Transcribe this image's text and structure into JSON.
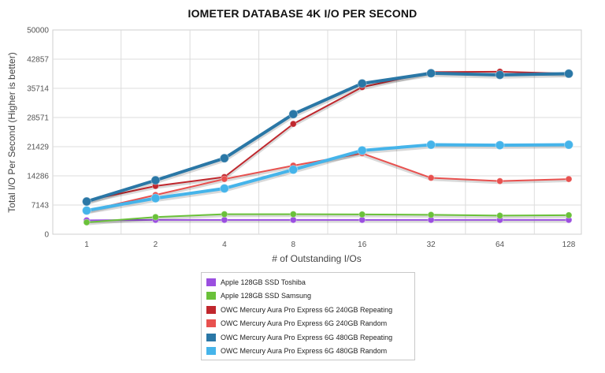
{
  "chart_data": {
    "type": "line",
    "title": "IOMETER DATABASE 4K I/O PER SECOND",
    "xlabel": "# of Outstanding I/Os",
    "ylabel": "Total I/O Per Second (Higher is better)",
    "categories": [
      "1",
      "2",
      "4",
      "8",
      "16",
      "32",
      "64",
      "128"
    ],
    "yticks": [
      "0",
      "7143",
      "14286",
      "21429",
      "28571",
      "35714",
      "42857",
      "50000"
    ],
    "ylim": [
      0,
      50000
    ],
    "grid": true,
    "legend_position": "bottom",
    "series": [
      {
        "name": "Apple 128GB SSD Toshiba",
        "color": "#9b4fe0",
        "values": [
          3400,
          3500,
          3500,
          3500,
          3500,
          3500,
          3500,
          3500
        ]
      },
      {
        "name": "Apple 128GB SSD Samsung",
        "color": "#6ac13a",
        "values": [
          2900,
          4200,
          4900,
          4900,
          4850,
          4750,
          4550,
          4650
        ]
      },
      {
        "name": "OWC Mercury Aura Pro Express 6G 240GB Repeating",
        "color": "#c0272d",
        "values": [
          8200,
          11800,
          14000,
          27000,
          36000,
          39700,
          39800,
          39300
        ]
      },
      {
        "name": "OWC Mercury Aura Pro Express 6G 240GB Random",
        "color": "#e8514f",
        "values": [
          5700,
          9600,
          13500,
          16800,
          19800,
          13800,
          13000,
          13500
        ]
      },
      {
        "name": "OWC Mercury Aura Pro Express 6G 480GB Repeating",
        "color": "#2a77a6",
        "values": [
          8000,
          13200,
          18600,
          29400,
          36900,
          39400,
          39000,
          39300
        ]
      },
      {
        "name": "OWC Mercury Aura Pro Express 6G 480GB Random",
        "color": "#45b4ea",
        "values": [
          5800,
          8800,
          11200,
          15800,
          20500,
          21900,
          21800,
          21900
        ]
      }
    ]
  }
}
